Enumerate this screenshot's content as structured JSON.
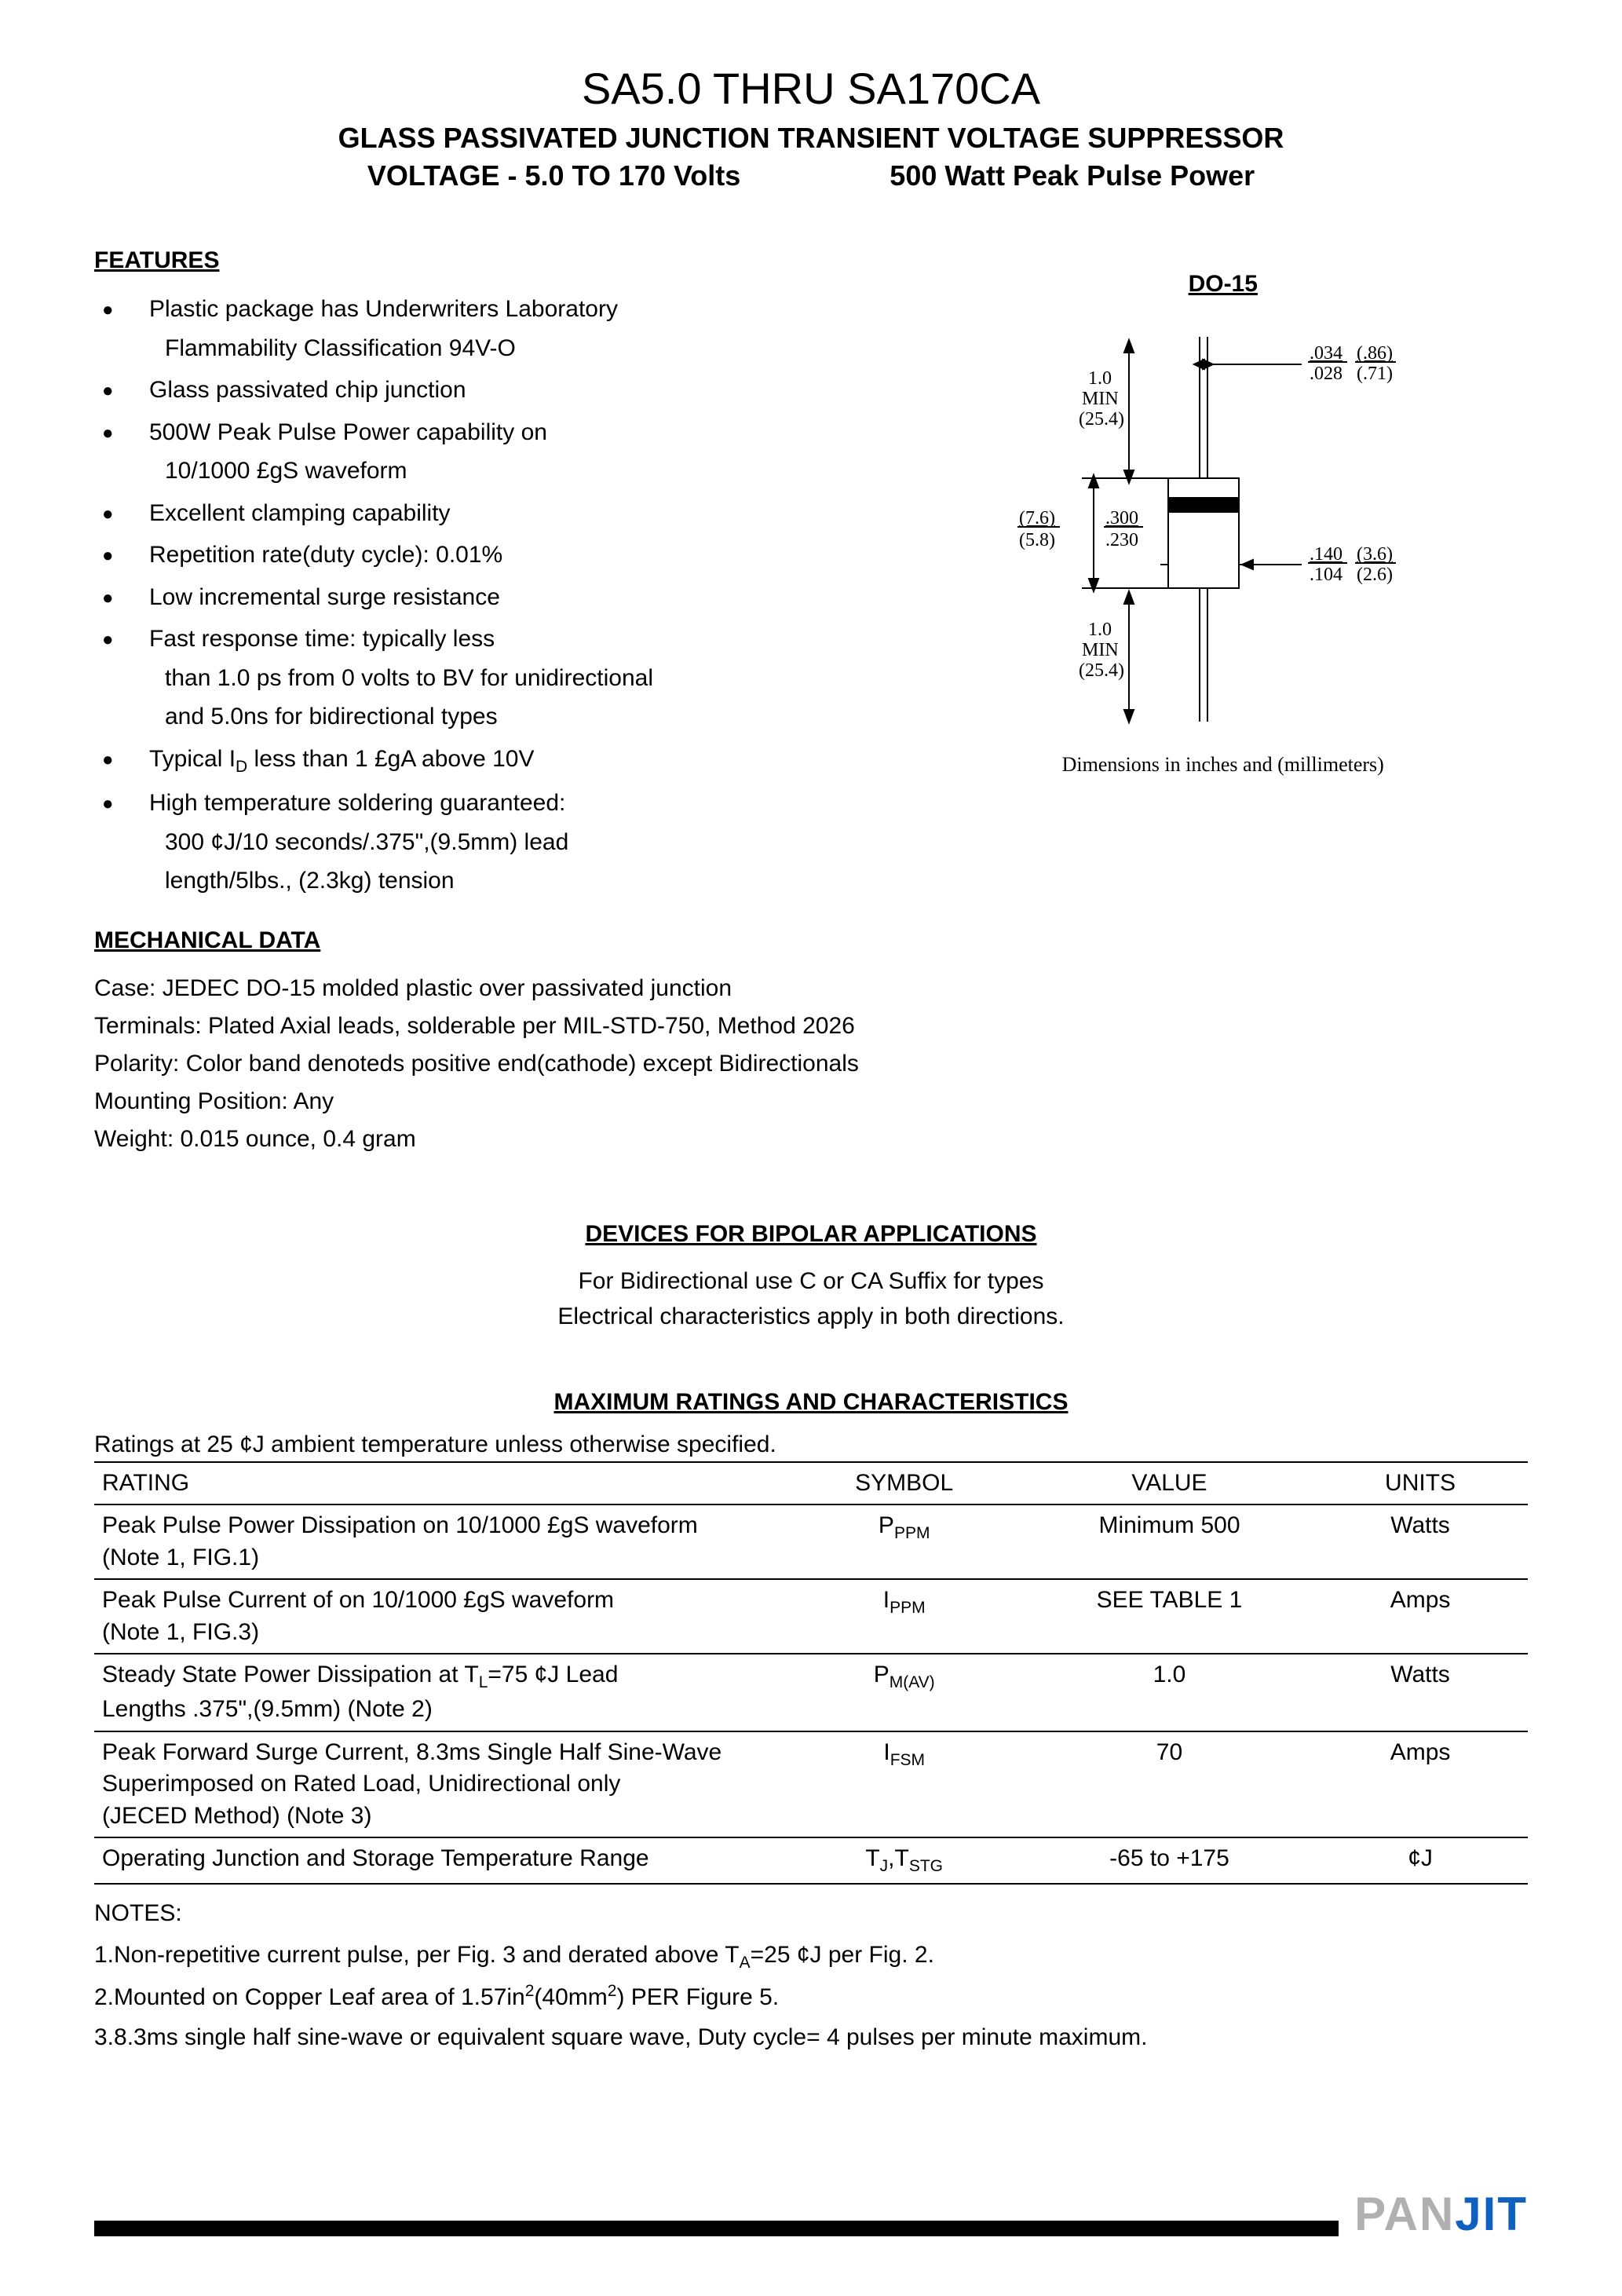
{
  "header": {
    "title": "SA5.0 THRU SA170CA",
    "subtitle1": "GLASS PASSIVATED JUNCTION TRANSIENT VOLTAGE SUPPRESSOR",
    "subtitle2_left": "VOLTAGE - 5.0 TO 170 Volts",
    "subtitle2_right": "500 Watt Peak Pulse Power"
  },
  "features": {
    "heading": "FEATURES",
    "items": [
      {
        "text": "Plastic package has Underwriters Laboratory",
        "cont": "Flammability Classification 94V-O"
      },
      {
        "text": "Glass passivated chip junction"
      },
      {
        "text": "500W Peak Pulse Power capability on",
        "cont": "10/1000 £gS   waveform"
      },
      {
        "text": "Excellent clamping capability"
      },
      {
        "text": "Repetition rate(duty cycle): 0.01%"
      },
      {
        "text": "Low incremental surge resistance"
      },
      {
        "text": "Fast response time: typically less",
        "cont": "than 1.0 ps from 0 volts to BV for unidirectional",
        "cont2": "and 5.0ns for bidirectional types"
      },
      {
        "text": "Typical I_D less than 1 £gA above 10V",
        "has_sub": true
      },
      {
        "text": "High temperature soldering guaranteed:",
        "cont": "300 ¢J/10 seconds/.375\",(9.5mm) lead",
        "cont2": "length/5lbs., (2.3kg) tension"
      }
    ]
  },
  "mechanical": {
    "heading": "MECHANICAL DATA",
    "lines": [
      "Case: JEDEC DO-15 molded plastic over passivated junction",
      "Terminals: Plated Axial leads, solderable per MIL-STD-750, Method 2026",
      "Polarity: Color band denoteds positive end(cathode) except Bidirectionals",
      "Mounting Position: Any",
      "Weight: 0.015 ounce, 0.4 gram"
    ]
  },
  "package": {
    "label": "DO-15",
    "caption": "Dimensions in inches and (millimeters)",
    "dims": {
      "lead_min": "1.0",
      "lead_min_label": "MIN",
      "lead_min_mm": "(25.4)",
      "lead_dia_max": ".034",
      "lead_dia_min": ".028",
      "lead_dia_max_mm": "(.86)",
      "lead_dia_min_mm": "(.71)",
      "body_len_max_mm": "(7.6)",
      "body_len_min_mm": "(5.8)",
      "body_len_max": ".300",
      "body_len_min": ".230",
      "body_dia_max": ".140",
      "body_dia_min": ".104",
      "body_dia_max_mm": "(3.6)",
      "body_dia_min_mm": "(2.6)"
    },
    "colors": {
      "line": "#000000",
      "band": "#000000",
      "body_fill": "#ffffff"
    }
  },
  "bipolar": {
    "heading": "DEVICES FOR BIPOLAR APPLICATIONS",
    "line1": "For Bidirectional use C or CA Suffix for types",
    "line2": "Electrical characteristics apply in both directions."
  },
  "ratings": {
    "heading": "MAXIMUM RATINGS AND CHARACTERISTICS",
    "subhead": "Ratings at 25 ¢J ambient temperature unless otherwise specified.",
    "columns": [
      "RATING",
      "SYMBOL",
      "VALUE",
      "UNITS"
    ],
    "rows": [
      {
        "rating": "Peak Pulse Power Dissipation on 10/1000 £gS waveform\n(Note 1, FIG.1)",
        "symbol": "P_PPM",
        "value": "Minimum 500",
        "units": "Watts"
      },
      {
        "rating": "Peak Pulse Current of on 10/1000 £gS waveform\n(Note 1, FIG.3)",
        "symbol": "I_PPM",
        "value": "SEE TABLE 1",
        "units": "Amps"
      },
      {
        "rating": "Steady State Power Dissipation at T_L=75 ¢J Lead\nLengths .375\",(9.5mm) (Note 2)",
        "symbol": "P_M(AV)",
        "value": "1.0",
        "units": "Watts"
      },
      {
        "rating": "Peak Forward Surge Current, 8.3ms Single Half Sine-Wave\nSuperimposed on Rated Load, Unidirectional only\n(JECED Method) (Note 3)",
        "symbol": "I_FSM",
        "value": "70",
        "units": "Amps"
      },
      {
        "rating": "Operating Junction and Storage Temperature Range",
        "symbol": "T_J,T_STG",
        "value": "-65 to +175",
        "units": "¢J"
      }
    ]
  },
  "notes": {
    "heading": "NOTES:",
    "items": [
      "1.Non-repetitive current pulse, per Fig. 3 and derated above T_A=25 ¢J per Fig. 2.",
      "2.Mounted on Copper Leaf area of 1.57in^2(40mm^2) PER Figure 5.",
      "3.8.3ms single half sine-wave or equivalent square wave, Duty cycle= 4 pulses per minute maximum."
    ]
  },
  "logo": {
    "pan": "PAN",
    "jit": "JIT"
  }
}
